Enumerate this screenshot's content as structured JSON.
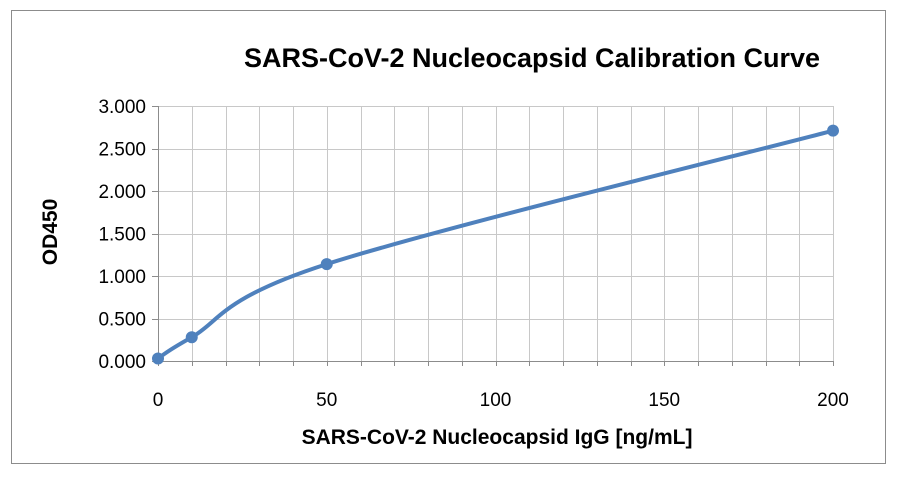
{
  "chart_data": {
    "type": "line",
    "title": "SARS-CoV-2 Nucleocapsid Calibration Curve",
    "xlabel": "SARS-CoV-2 Nucleocapsid IgG [ng/mL]",
    "ylabel": "OD450",
    "xlim": [
      0,
      200
    ],
    "ylim": [
      0,
      3
    ],
    "x_ticks": [
      0,
      50,
      100,
      150,
      200
    ],
    "x_tick_labels": [
      "0",
      "50",
      "100",
      "150",
      "200"
    ],
    "y_ticks": [
      0,
      0.5,
      1,
      1.5,
      2,
      2.5,
      3
    ],
    "y_tick_labels": [
      "0.000",
      "0.500",
      "1.000",
      "1.500",
      "2.000",
      "2.500",
      "3.000"
    ],
    "x_minor_step": 10,
    "grid": true,
    "legend": "none",
    "series": [
      {
        "x": [
          0,
          10,
          50,
          200
        ],
        "y": [
          0.03,
          0.28,
          1.14,
          2.71
        ],
        "color": "#4f81bd",
        "smooth": true,
        "markers": true
      }
    ]
  }
}
